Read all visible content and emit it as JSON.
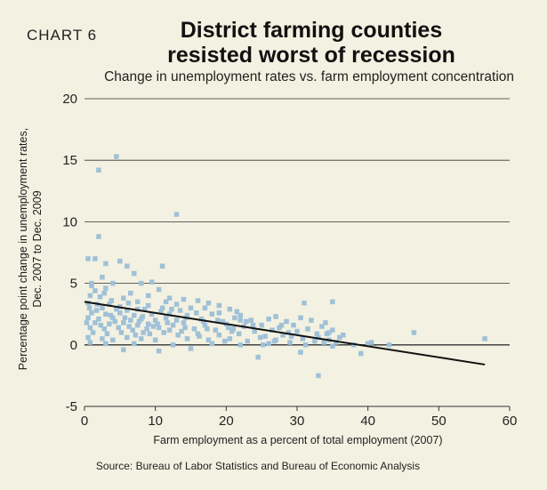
{
  "header": {
    "chart_number": "CHART 6",
    "title_line1": "District farming counties",
    "title_line2": "resisted worst of recession",
    "subtitle": "Change in unemployment rates vs. farm employment concentration"
  },
  "footer": {
    "source": "Source: Bureau of Labor Statistics and Bureau of Economic Analysis"
  },
  "colors": {
    "background": "#f3f1e1",
    "points": "#9fc1d8",
    "trend_line": "#111111",
    "grid": "#333333"
  },
  "chart_data": {
    "type": "scatter",
    "title": "District farming counties resisted worst of recession",
    "subtitle": "Change in unemployment rates vs. farm employment concentration",
    "xlabel": "Farm employment as a percent of total employment (2007)",
    "ylabel_line1": "Percentage point change in unemployment rates,",
    "ylabel_line2": "Dec. 2007 to Dec. 2009",
    "xlim": [
      0,
      60
    ],
    "ylim": [
      -5,
      20
    ],
    "x_ticks": [
      0,
      10,
      20,
      30,
      40,
      50,
      60
    ],
    "y_ticks": [
      -5,
      0,
      5,
      10,
      15,
      20
    ],
    "grid": "horizontal",
    "trend_line": {
      "x": [
        0,
        56.5
      ],
      "y": [
        3.5,
        -1.6
      ]
    },
    "points": [
      [
        4.5,
        15.3
      ],
      [
        2.0,
        14.2
      ],
      [
        13.0,
        10.6
      ],
      [
        2.0,
        8.8
      ],
      [
        1.5,
        7.0
      ],
      [
        0.5,
        7.0
      ],
      [
        3.0,
        6.6
      ],
      [
        5.0,
        6.8
      ],
      [
        6.0,
        6.4
      ],
      [
        11.0,
        6.4
      ],
      [
        2.5,
        5.5
      ],
      [
        7.0,
        5.8
      ],
      [
        1.0,
        5.0
      ],
      [
        4.0,
        5.0
      ],
      [
        8.0,
        5.0
      ],
      [
        9.5,
        5.1
      ],
      [
        3.0,
        4.6
      ],
      [
        1.5,
        4.4
      ],
      [
        6.5,
        4.2
      ],
      [
        10.5,
        4.5
      ],
      [
        0.8,
        4.0
      ],
      [
        2.2,
        3.9
      ],
      [
        5.5,
        3.8
      ],
      [
        12.0,
        3.8
      ],
      [
        14.0,
        3.7
      ],
      [
        0.5,
        3.4
      ],
      [
        1.8,
        3.3
      ],
      [
        3.5,
        3.3
      ],
      [
        7.5,
        3.5
      ],
      [
        9.0,
        3.2
      ],
      [
        16.0,
        3.6
      ],
      [
        17.5,
        3.4
      ],
      [
        19.0,
        3.2
      ],
      [
        0.7,
        3.0
      ],
      [
        2.5,
        3.0
      ],
      [
        4.5,
        2.9
      ],
      [
        6.0,
        2.8
      ],
      [
        8.5,
        2.9
      ],
      [
        11.0,
        3.0
      ],
      [
        13.5,
        2.8
      ],
      [
        15.0,
        3.0
      ],
      [
        20.5,
        2.9
      ],
      [
        21.5,
        2.7
      ],
      [
        1.0,
        2.6
      ],
      [
        3.0,
        2.5
      ],
      [
        5.0,
        2.6
      ],
      [
        7.0,
        2.4
      ],
      [
        9.5,
        2.5
      ],
      [
        12.0,
        2.5
      ],
      [
        14.5,
        2.4
      ],
      [
        18.0,
        2.5
      ],
      [
        22.0,
        2.4
      ],
      [
        27.0,
        2.3
      ],
      [
        30.5,
        2.2
      ],
      [
        0.5,
        2.2
      ],
      [
        2.0,
        2.1
      ],
      [
        4.0,
        2.2
      ],
      [
        6.5,
        2.0
      ],
      [
        8.0,
        2.1
      ],
      [
        10.0,
        2.0
      ],
      [
        11.5,
        2.2
      ],
      [
        13.0,
        2.0
      ],
      [
        16.5,
        2.1
      ],
      [
        19.5,
        1.9
      ],
      [
        23.5,
        2.0
      ],
      [
        26.0,
        2.1
      ],
      [
        28.5,
        1.9
      ],
      [
        32.0,
        2.0
      ],
      [
        1.5,
        1.8
      ],
      [
        3.5,
        1.7
      ],
      [
        5.5,
        1.8
      ],
      [
        7.5,
        1.6
      ],
      [
        9.0,
        1.7
      ],
      [
        12.5,
        1.6
      ],
      [
        14.0,
        1.8
      ],
      [
        17.0,
        1.6
      ],
      [
        20.0,
        1.7
      ],
      [
        22.5,
        1.5
      ],
      [
        25.0,
        1.6
      ],
      [
        27.5,
        1.4
      ],
      [
        29.5,
        1.6
      ],
      [
        33.5,
        1.5
      ],
      [
        34.0,
        1.8
      ],
      [
        0.8,
        1.4
      ],
      [
        2.8,
        1.3
      ],
      [
        4.8,
        1.4
      ],
      [
        6.8,
        1.2
      ],
      [
        8.8,
        1.3
      ],
      [
        10.5,
        1.4
      ],
      [
        12.0,
        1.2
      ],
      [
        15.5,
        1.3
      ],
      [
        18.5,
        1.2
      ],
      [
        21.0,
        1.3
      ],
      [
        24.0,
        1.1
      ],
      [
        26.5,
        1.2
      ],
      [
        30.0,
        1.1
      ],
      [
        31.5,
        1.3
      ],
      [
        34.5,
        1.0
      ],
      [
        35.0,
        1.2
      ],
      [
        1.2,
        1.0
      ],
      [
        3.2,
        0.9
      ],
      [
        5.2,
        1.0
      ],
      [
        7.2,
        0.8
      ],
      [
        9.2,
        0.9
      ],
      [
        11.2,
        1.0
      ],
      [
        13.2,
        0.8
      ],
      [
        16.0,
        0.9
      ],
      [
        19.0,
        0.8
      ],
      [
        21.8,
        0.9
      ],
      [
        25.5,
        0.7
      ],
      [
        28.0,
        0.8
      ],
      [
        33.0,
        0.6
      ],
      [
        0.5,
        0.6
      ],
      [
        2.5,
        0.5
      ],
      [
        4.0,
        0.4
      ],
      [
        6.0,
        0.6
      ],
      [
        8.0,
        0.5
      ],
      [
        10.0,
        0.4
      ],
      [
        14.5,
        0.5
      ],
      [
        17.5,
        0.4
      ],
      [
        20.5,
        0.5
      ],
      [
        23.0,
        0.3
      ],
      [
        27.0,
        0.4
      ],
      [
        29.0,
        0.2
      ],
      [
        32.5,
        0.3
      ],
      [
        34.5,
        0.4
      ],
      [
        35.5,
        0.2
      ],
      [
        0.8,
        0.2
      ],
      [
        3.0,
        0.1
      ],
      [
        7.0,
        0.1
      ],
      [
        12.5,
        0.0
      ],
      [
        18.0,
        0.1
      ],
      [
        22.0,
        0.0
      ],
      [
        26.0,
        0.1
      ],
      [
        35.0,
        -0.1
      ],
      [
        38.0,
        0.0
      ],
      [
        43.0,
        0.0
      ],
      [
        40.0,
        0.1
      ],
      [
        46.5,
        1.0
      ],
      [
        56.5,
        0.5
      ],
      [
        5.5,
        -0.4
      ],
      [
        10.5,
        -0.5
      ],
      [
        15.0,
        -0.3
      ],
      [
        24.5,
        -1.0
      ],
      [
        30.5,
        -0.6
      ],
      [
        39.0,
        -0.7
      ],
      [
        33.0,
        -2.5
      ],
      [
        35.0,
        3.5
      ],
      [
        31.0,
        3.4
      ],
      [
        22.0,
        2.0
      ],
      [
        19.0,
        2.6
      ],
      [
        17.0,
        3.0
      ],
      [
        13.0,
        3.3
      ],
      [
        11.5,
        3.5
      ],
      [
        9.0,
        4.0
      ],
      [
        7.5,
        2.9
      ],
      [
        5.0,
        3.1
      ],
      [
        3.8,
        3.6
      ],
      [
        1.0,
        4.8
      ],
      [
        2.8,
        4.2
      ],
      [
        6.2,
        3.4
      ],
      [
        8.2,
        2.3
      ],
      [
        10.8,
        2.7
      ],
      [
        15.8,
        2.6
      ],
      [
        18.8,
        2.0
      ],
      [
        23.8,
        1.6
      ],
      [
        28.8,
        1.0
      ],
      [
        32.8,
        0.9
      ],
      [
        36.0,
        0.6
      ],
      [
        40.5,
        0.2
      ],
      [
        14.2,
        1.4
      ],
      [
        16.8,
        1.9
      ],
      [
        20.8,
        1.1
      ],
      [
        24.8,
        0.6
      ],
      [
        26.8,
        0.3
      ],
      [
        30.8,
        0.5
      ],
      [
        1.7,
        2.8
      ],
      [
        3.7,
        2.4
      ],
      [
        5.7,
        2.2
      ],
      [
        7.7,
        1.9
      ],
      [
        9.7,
        1.5
      ],
      [
        11.7,
        1.8
      ],
      [
        13.7,
        1.1
      ],
      [
        16.2,
        0.7
      ],
      [
        19.8,
        0.3
      ],
      [
        21.2,
        2.2
      ],
      [
        25.2,
        0.0
      ],
      [
        29.2,
        0.7
      ],
      [
        31.2,
        0.0
      ],
      [
        34.2,
        0.9
      ],
      [
        0.3,
        1.8
      ],
      [
        2.3,
        1.6
      ],
      [
        4.3,
        1.9
      ],
      [
        6.3,
        1.5
      ],
      [
        8.3,
        1.0
      ],
      [
        10.3,
        1.7
      ],
      [
        12.3,
        2.9
      ],
      [
        14.3,
        2.2
      ],
      [
        17.3,
        1.3
      ],
      [
        20.3,
        1.4
      ],
      [
        22.8,
        1.9
      ],
      [
        27.8,
        1.6
      ],
      [
        33.8,
        0.2
      ],
      [
        36.5,
        0.8
      ]
    ]
  }
}
